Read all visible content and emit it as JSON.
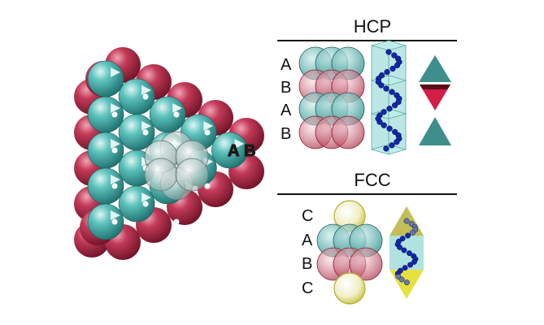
{
  "hcp": {
    "title": "HCP",
    "layers": [
      "A",
      "B",
      "A",
      "B"
    ]
  },
  "fcc": {
    "title": "FCC",
    "layers": [
      "C",
      "A",
      "B",
      "C"
    ]
  },
  "packing": {
    "label_a": "A",
    "label_b": "B"
  },
  "colors": {
    "teal": "#3aa39f",
    "crimson": "#b8324f",
    "yellow": "#e6dc47",
    "navy": "#1228a8",
    "pale": "#cfd9d6"
  }
}
